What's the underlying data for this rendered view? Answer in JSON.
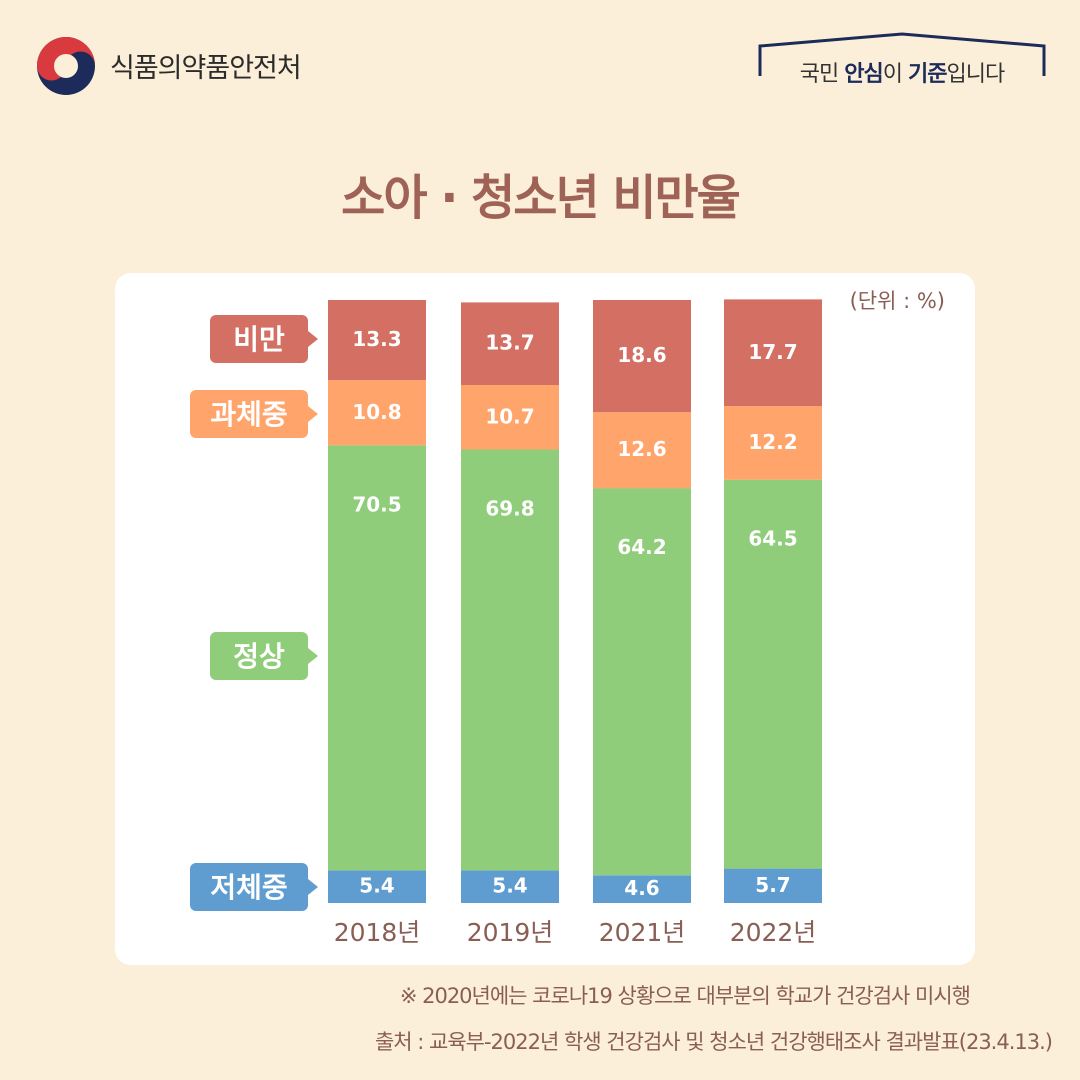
{
  "header": {
    "org_name": "식품의약품안전처",
    "slogan_prefix": "국민 ",
    "slogan_em1": "안심",
    "slogan_mid": "이 ",
    "slogan_em2": "기준",
    "slogan_suffix": "입니다"
  },
  "colors": {
    "obese": "#d36f63",
    "overweight": "#ffa46a",
    "normal": "#8fcd7a",
    "underweight": "#5f9cd0"
  },
  "chart_data": {
    "type": "bar",
    "stacked": true,
    "title": "소아 · 청소년 비만율",
    "unit_label": "(단위 : %)",
    "categories": [
      "2018년",
      "2019년",
      "2021년",
      "2022년"
    ],
    "series": [
      {
        "name": "저체중",
        "values": [
          5.4,
          5.4,
          4.6,
          5.7
        ]
      },
      {
        "name": "정상",
        "values": [
          70.5,
          69.8,
          64.2,
          64.5
        ]
      },
      {
        "name": "과체중",
        "values": [
          10.8,
          10.7,
          12.6,
          12.2
        ]
      },
      {
        "name": "비만",
        "values": [
          13.3,
          13.7,
          18.6,
          17.7
        ]
      }
    ],
    "ylim": [
      0,
      100
    ]
  },
  "footer": {
    "note": "※ 2020년에는 코로나19 상황으로 대부분의 학교가 건강검사 미시행",
    "source": "출처 : 교육부-2022년 학생 건강검사 및 청소년 건강행태조사 결과발표(23.4.13.)"
  }
}
